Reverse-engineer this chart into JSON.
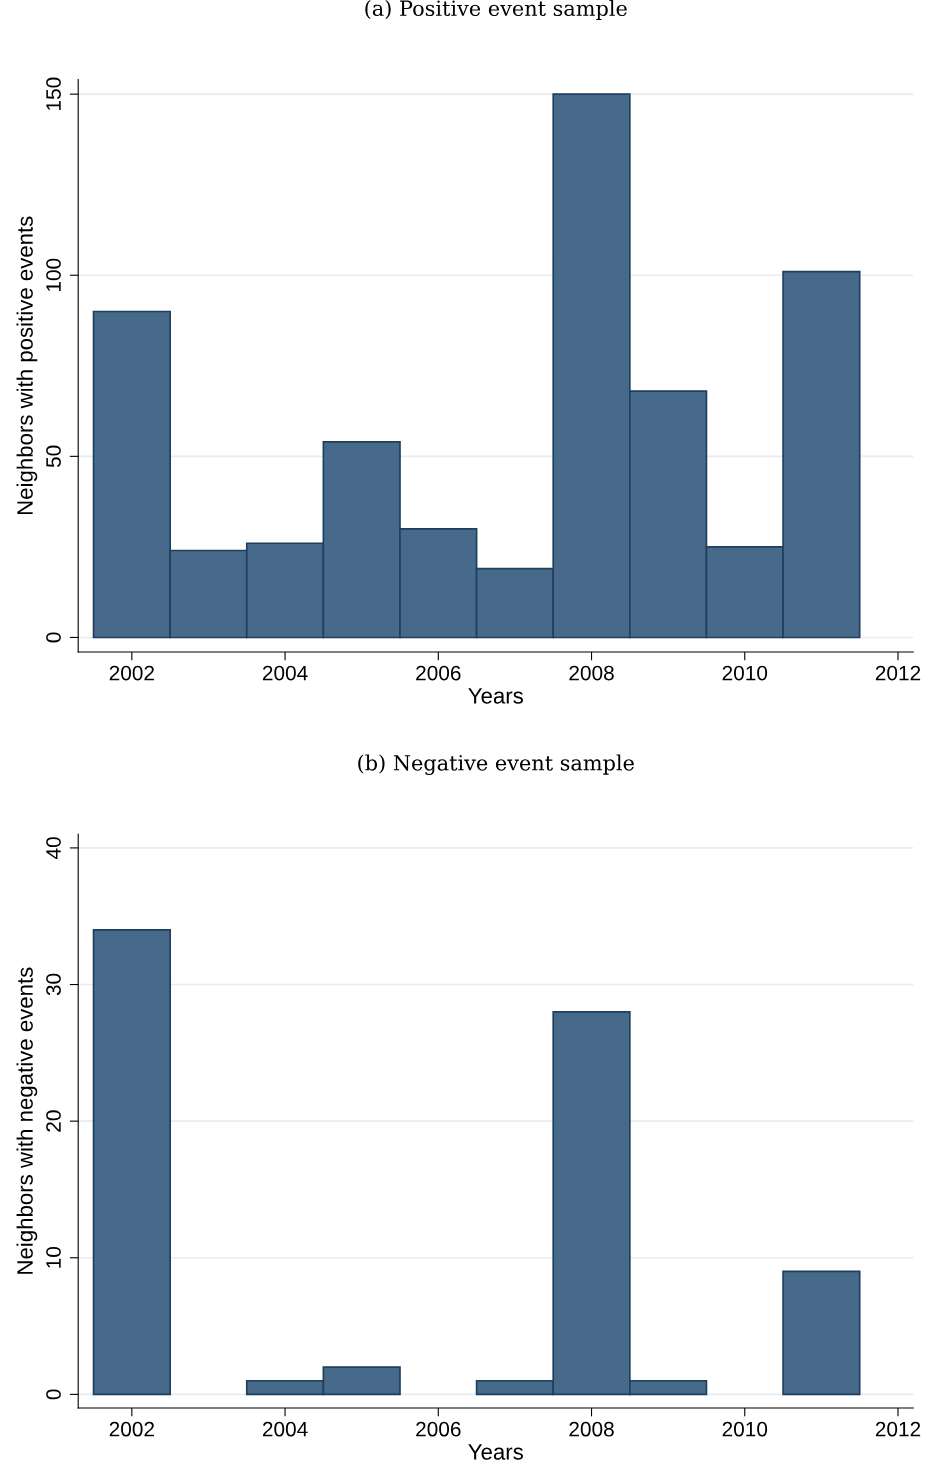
{
  "chart_data": [
    {
      "type": "histogram",
      "title": "(a) Positive event sample",
      "xlabel": "Years",
      "ylabel": "Neighbors with positive events",
      "bins": [
        2001.5,
        2002.5,
        2003.5,
        2004.5,
        2005.5,
        2006.5,
        2007.5,
        2008.5,
        2009.5,
        2010.5,
        2011.5
      ],
      "values": [
        90,
        24,
        26,
        54,
        30,
        19,
        150,
        68,
        25,
        101
      ],
      "color": "#476a8a",
      "xlim": [
        2001.3,
        2012.2
      ],
      "xticks": [
        2002,
        2004,
        2006,
        2008,
        2010,
        2012
      ],
      "ylim": [
        -4,
        154
      ],
      "yticks": [
        0,
        50,
        100,
        150
      ],
      "grid": "y"
    },
    {
      "type": "histogram",
      "title": "(b) Negative event sample",
      "xlabel": "Years",
      "ylabel": "Neighbors with negative events",
      "bins": [
        2001.5,
        2002.5,
        2003.5,
        2004.5,
        2005.5,
        2006.5,
        2007.5,
        2008.5,
        2009.5,
        2010.5,
        2011.5
      ],
      "values": [
        34,
        0,
        1,
        2,
        0,
        1,
        28,
        1,
        0,
        9
      ],
      "color": "#476a8a",
      "xlim": [
        2001.3,
        2012.2
      ],
      "xticks": [
        2002,
        2004,
        2006,
        2008,
        2010,
        2012
      ],
      "ylim": [
        -1,
        41
      ],
      "yticks": [
        0,
        10,
        20,
        30,
        40
      ],
      "grid": "y"
    }
  ]
}
